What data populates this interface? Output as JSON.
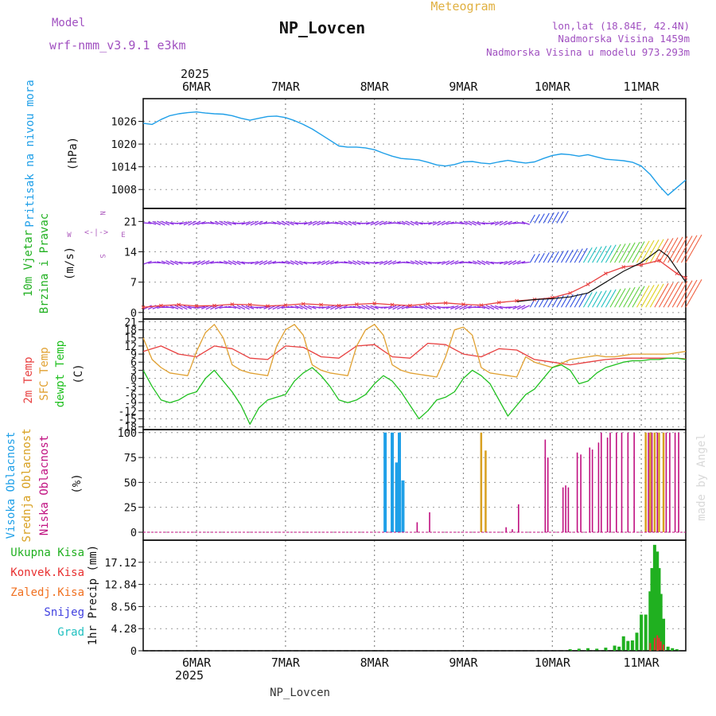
{
  "header": {
    "model_label": "Model",
    "model_name": "wrf-nmm_v3.9.1 e3km",
    "station": "NP_Lovcen",
    "chart_type": "Meteogram",
    "lonlat": "lon,lat (18.84E, 42.4N)",
    "elevation": "Nadmorska Visina 1459m",
    "model_elevation": "Nadmorska Visina u modelu 973.293m",
    "year": "2025",
    "footer_station": "NP_Lovcen",
    "credit": "made by Angel"
  },
  "colors": {
    "pressure": "#1f9fe8",
    "t2m": "#e84040",
    "sfc": "#e0a030",
    "dewpt": "#20c020",
    "high_cloud": "#1fa0e8",
    "mid_cloud": "#d8a020",
    "low_cloud": "#c01080",
    "total_precip": "#20b020",
    "conv_precip": "#e83030",
    "frz_precip": "#f07020",
    "snow": "#4040e0",
    "graupel": "#20c0c0",
    "wind_label": "#20b020",
    "wind_direction": "#b060c0",
    "title": "#a050c0",
    "meteogram": "#e0b040"
  },
  "chart_data": [
    {
      "type": "line",
      "id": "pressure",
      "ylabel": [
        "Pritisak na nivou mora",
        "(hPa)"
      ],
      "ylim": [
        1003,
        1032
      ],
      "yticks": [
        1008,
        1014,
        1020,
        1026
      ],
      "x_dates": [
        "6MAR",
        "7MAR",
        "8MAR",
        "9MAR",
        "10MAR",
        "11MAR"
      ],
      "x_day_offset": [
        0,
        1,
        2,
        3,
        4,
        5
      ],
      "xlim_days": [
        -0.6,
        5.5
      ],
      "series": [
        {
          "name": "Pritisak na nivou mora",
          "unit": "hPa",
          "x": [
            -0.6,
            -0.5,
            -0.4,
            -0.3,
            -0.2,
            -0.1,
            0,
            0.1,
            0.2,
            0.3,
            0.4,
            0.5,
            0.6,
            0.7,
            0.8,
            0.9,
            1,
            1.1,
            1.2,
            1.3,
            1.4,
            1.5,
            1.6,
            1.7,
            1.8,
            1.9,
            2,
            2.1,
            2.2,
            2.3,
            2.4,
            2.5,
            2.6,
            2.7,
            2.8,
            2.9,
            3,
            3.1,
            3.2,
            3.3,
            3.4,
            3.5,
            3.6,
            3.7,
            3.8,
            3.9,
            4,
            4.1,
            4.2,
            4.3,
            4.4,
            4.5,
            4.6,
            4.7,
            4.8,
            4.9,
            5,
            5.1,
            5.2,
            5.3,
            5.4,
            5.5
          ],
          "values": [
            1025.5,
            1025.2,
            1026.5,
            1027.5,
            1028,
            1028.3,
            1028.5,
            1028.2,
            1028,
            1027.9,
            1027.5,
            1026.8,
            1026.3,
            1026.8,
            1027.3,
            1027.4,
            1027,
            1026.2,
            1025.2,
            1024,
            1022.5,
            1021,
            1019.5,
            1019.2,
            1019.2,
            1019,
            1018.5,
            1017.6,
            1016.8,
            1016.2,
            1016,
            1015.8,
            1015.2,
            1014.5,
            1014.2,
            1014.6,
            1015.3,
            1015.4,
            1015,
            1014.8,
            1015.3,
            1015.7,
            1015.3,
            1015,
            1015.3,
            1016.2,
            1017,
            1017.4,
            1017.2,
            1016.8,
            1017.2,
            1016.6,
            1016,
            1015.8,
            1015.6,
            1015.2,
            1014.2,
            1012,
            1009,
            1006.5,
            1008.5,
            1010.5
          ]
        }
      ]
    },
    {
      "type": "line",
      "id": "wind",
      "ylabel": [
        "10m Vjetar",
        "Brzina i Pravac",
        "(m/s)"
      ],
      "direction_legend": [
        "N",
        "W",
        "E",
        "S",
        "<-|->"
      ],
      "ylim": [
        -1.5,
        24
      ],
      "yticks": [
        0,
        7,
        14,
        21
      ],
      "series": [
        {
          "name": "Brzina vjetra 10m",
          "unit": "m/s",
          "x": [
            -0.6,
            -0.4,
            -0.2,
            0,
            0.2,
            0.4,
            0.6,
            0.8,
            1,
            1.2,
            1.4,
            1.6,
            1.8,
            2,
            2.2,
            2.4,
            2.6,
            2.8,
            3,
            3.2,
            3.4,
            3.6,
            3.8,
            4,
            4.2,
            4.4,
            4.6,
            4.8,
            5,
            5.2,
            5.4,
            5.5
          ],
          "values": [
            1.2,
            1.6,
            1.8,
            1.5,
            1.6,
            1.9,
            1.8,
            1.5,
            1.7,
            2,
            1.8,
            1.6,
            1.9,
            2.1,
            1.8,
            1.6,
            2,
            2.2,
            1.9,
            1.7,
            2.3,
            2.7,
            3,
            3.4,
            4.5,
            6.5,
            9,
            10.5,
            11,
            12,
            9,
            8
          ]
        },
        {
          "name": "Udari vjetra",
          "unit": "m/s",
          "x": [
            3.6,
            3.8,
            4,
            4.2,
            4.4,
            4.6,
            4.8,
            5,
            5.1,
            5.2,
            5.3,
            5.4,
            5.5
          ],
          "values": [
            2.5,
            3,
            3.2,
            3.6,
            4.5,
            7,
            9.5,
            11.5,
            13,
            14.5,
            13,
            10,
            7
          ]
        }
      ]
    },
    {
      "type": "line",
      "id": "temperature",
      "ylabel": [
        "2m Temp",
        "SFC Temp",
        "dewpt Temp",
        "(C)"
      ],
      "ylim": [
        -19,
        22
      ],
      "yticks": [
        -18,
        -15,
        -12,
        -9,
        -6,
        -3,
        0,
        3,
        6,
        9,
        12,
        15,
        18,
        21
      ],
      "series": [
        {
          "name": "2m Temp",
          "unit": "C",
          "x": [
            -0.6,
            -0.4,
            -0.2,
            0,
            0.2,
            0.4,
            0.6,
            0.8,
            1,
            1.2,
            1.4,
            1.6,
            1.8,
            2,
            2.2,
            2.4,
            2.6,
            2.8,
            3,
            3.2,
            3.4,
            3.6,
            3.8,
            4,
            4.2,
            4.4,
            4.6,
            4.8,
            5,
            5.2,
            5.4,
            5.5
          ],
          "values": [
            10,
            12,
            9,
            8,
            12,
            11,
            7.5,
            7,
            12,
            11.5,
            8,
            7.5,
            12,
            12.5,
            8,
            7.5,
            13,
            12.5,
            9,
            8,
            11,
            10.5,
            7,
            6,
            5,
            6,
            7,
            7.5,
            7.5,
            7.5,
            7.5,
            7.2
          ]
        },
        {
          "name": "SFC Temp",
          "unit": "C",
          "x": [
            -0.6,
            -0.5,
            -0.4,
            -0.3,
            -0.2,
            -0.1,
            0,
            0.1,
            0.2,
            0.3,
            0.4,
            0.5,
            0.6,
            0.7,
            0.8,
            0.9,
            1,
            1.1,
            1.2,
            1.3,
            1.4,
            1.5,
            1.6,
            1.7,
            1.8,
            1.9,
            2,
            2.1,
            2.2,
            2.3,
            2.4,
            2.5,
            2.6,
            2.7,
            2.8,
            2.9,
            3,
            3.1,
            3.2,
            3.3,
            3.4,
            3.5,
            3.6,
            3.7,
            3.8,
            3.9,
            4,
            4.1,
            4.2,
            4.3,
            4.4,
            4.5,
            4.6,
            4.7,
            4.8,
            4.9,
            5,
            5.1,
            5.2,
            5.3,
            5.4,
            5.5
          ],
          "values": [
            15,
            7,
            4,
            2,
            1.5,
            1,
            10,
            17,
            20,
            15,
            5,
            3,
            2,
            1.5,
            1,
            12,
            18,
            20,
            16,
            5,
            3,
            2,
            1.5,
            1,
            12,
            18,
            20,
            16,
            5,
            3,
            2,
            1.5,
            1,
            0.5,
            8,
            18,
            19,
            16,
            4,
            2,
            1.5,
            1,
            0.5,
            8,
            6,
            5,
            4,
            5.5,
            7,
            7.5,
            8,
            8.5,
            8,
            8,
            8.5,
            9,
            9,
            9,
            9,
            9,
            9.5,
            10
          ]
        },
        {
          "name": "dewpt Temp",
          "unit": "C",
          "x": [
            -0.6,
            -0.5,
            -0.4,
            -0.3,
            -0.2,
            -0.1,
            0,
            0.1,
            0.2,
            0.3,
            0.4,
            0.5,
            0.6,
            0.7,
            0.8,
            0.9,
            1,
            1.1,
            1.2,
            1.3,
            1.4,
            1.5,
            1.6,
            1.7,
            1.8,
            1.9,
            2,
            2.1,
            2.2,
            2.3,
            2.4,
            2.5,
            2.6,
            2.7,
            2.8,
            2.9,
            3,
            3.1,
            3.2,
            3.3,
            3.4,
            3.5,
            3.6,
            3.7,
            3.8,
            3.9,
            4,
            4.1,
            4.2,
            4.3,
            4.4,
            4.5,
            4.6,
            4.7,
            4.8,
            4.9,
            5,
            5.1,
            5.2,
            5.3,
            5.4,
            5.5
          ],
          "values": [
            3,
            -3,
            -8,
            -9,
            -8,
            -6,
            -5,
            0,
            3,
            -1,
            -5,
            -10,
            -17,
            -11,
            -8,
            -7,
            -6,
            -1,
            2,
            4,
            1,
            -3,
            -8,
            -9,
            -8,
            -6,
            -2,
            1,
            -1,
            -5,
            -10,
            -15,
            -12,
            -8,
            -7,
            -5,
            0,
            3,
            1,
            -2,
            -8,
            -14,
            -10,
            -6,
            -4,
            0,
            4,
            5,
            3,
            -2,
            -1,
            2,
            4,
            5,
            6,
            6.5,
            6.5,
            7,
            7,
            7.5,
            7.5,
            7
          ]
        }
      ]
    },
    {
      "type": "bar",
      "id": "cloud",
      "ylabel": [
        "Visoka Oblacnost",
        "Srednja Oblacnost",
        "Niska Oblacnost",
        "(%)"
      ],
      "ylim": [
        -8,
        103
      ],
      "yticks": [
        0,
        25,
        50,
        75,
        100
      ],
      "series": [
        {
          "name": "Visoka Oblacnost",
          "x": [
            2.12,
            2.2,
            2.25,
            2.28,
            2.32
          ],
          "values": [
            100,
            100,
            70,
            100,
            52
          ]
        },
        {
          "name": "Srednja Oblacnost",
          "x": [
            3.2,
            3.25,
            5.05,
            5.1,
            5.15,
            5.2,
            5.25
          ],
          "values": [
            100,
            82,
            100,
            100,
            100,
            100,
            100
          ]
        },
        {
          "name": "Niska Oblacnost",
          "x": [
            2.48,
            2.62,
            3.48,
            3.55,
            3.62,
            3.92,
            3.95,
            4.12,
            4.15,
            4.18,
            4.28,
            4.32,
            4.42,
            4.45,
            4.52,
            4.55,
            4.62,
            4.65,
            4.72,
            4.78,
            4.85,
            4.92,
            5.08,
            5.12,
            5.18,
            5.28,
            5.32,
            5.38,
            5.42
          ],
          "values": [
            10,
            20,
            5,
            3,
            28,
            93,
            75,
            45,
            47,
            45,
            80,
            78,
            85,
            83,
            90,
            100,
            95,
            100,
            100,
            100,
            100,
            100,
            100,
            100,
            100,
            100,
            100,
            100,
            100
          ]
        }
      ]
    },
    {
      "type": "bar",
      "id": "precip",
      "ylabel": [
        "1hr Precip (mm)"
      ],
      "legend": [
        "Ukupna Kisa",
        "Konvek.Kisa",
        "Zaledj.Kisa",
        "Snijeg",
        "Grad"
      ],
      "ylim": [
        0,
        21.4
      ],
      "yticks": [
        0,
        4.28,
        8.56,
        12.84,
        17.12
      ],
      "series": [
        {
          "name": "Ukupna Kisa",
          "unit": "mm",
          "x": [
            4.2,
            4.3,
            4.4,
            4.5,
            4.6,
            4.7,
            4.75,
            4.8,
            4.85,
            4.9,
            4.95,
            5.0,
            5.05,
            5.1,
            5.12,
            5.15,
            5.18,
            5.2,
            5.22,
            5.25,
            5.3,
            5.35,
            5.4
          ],
          "values": [
            0.3,
            0.4,
            0.5,
            0.4,
            0.6,
            1.0,
            0.8,
            2.8,
            1.9,
            2.0,
            3.5,
            7.0,
            7.0,
            11.5,
            16,
            20.5,
            19.2,
            16,
            11,
            6.2,
            0.8,
            0.5,
            0.3
          ]
        },
        {
          "name": "Konvek.Kisa",
          "unit": "mm",
          "x": [
            5.1,
            5.15,
            5.18,
            5.2,
            5.22,
            5.25
          ],
          "values": [
            1.5,
            2.5,
            3.0,
            2.5,
            1.8,
            1.2
          ]
        }
      ]
    }
  ]
}
